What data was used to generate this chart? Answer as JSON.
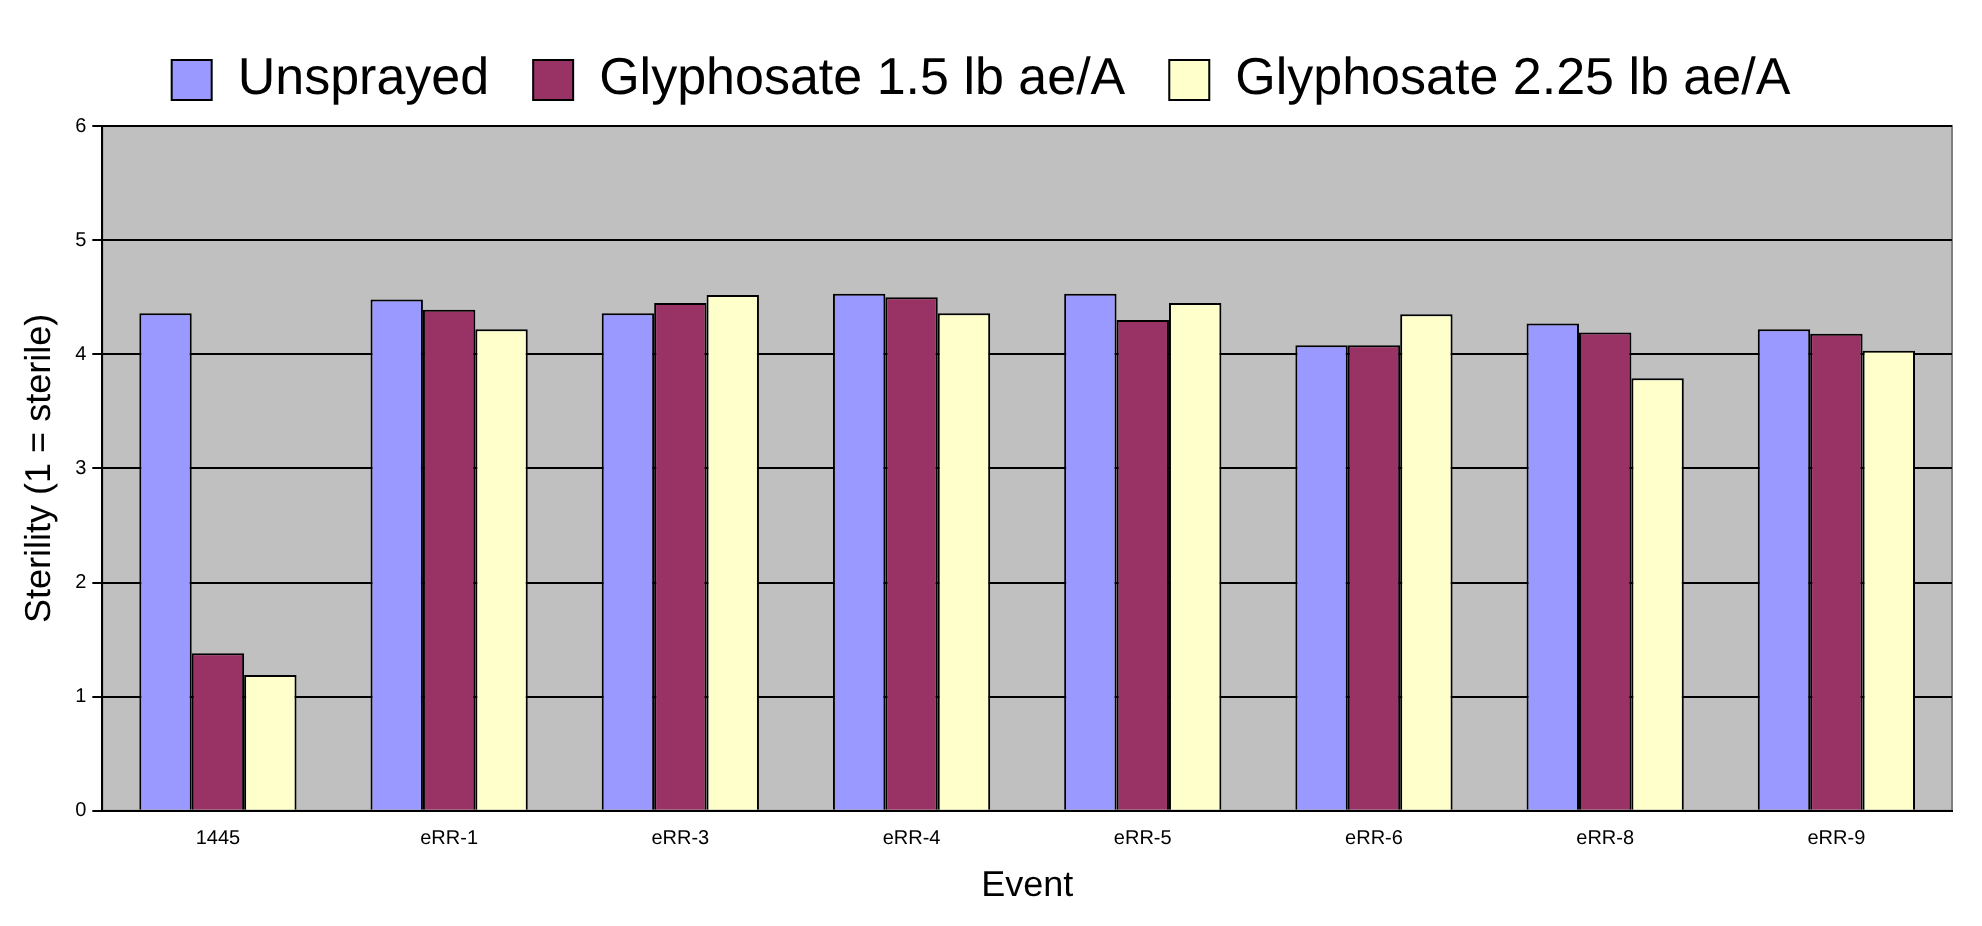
{
  "chart_data": {
    "type": "bar",
    "xlabel": "Event",
    "ylabel": "Sterility (1 = sterile)",
    "categories": [
      "1445",
      "eRR-1",
      "eRR-3",
      "eRR-4",
      "eRR-5",
      "eRR-6",
      "eRR-8",
      "eRR-9"
    ],
    "series": [
      {
        "name": "Unsprayed",
        "color": "#9999ff",
        "values": [
          4.36,
          4.48,
          4.36,
          4.53,
          4.53,
          4.08,
          4.27,
          4.22
        ]
      },
      {
        "name": "Glyphosate 1.5 lb ae/A",
        "color": "#993366",
        "values": [
          1.38,
          4.39,
          4.45,
          4.5,
          4.3,
          4.08,
          4.19,
          4.18
        ]
      },
      {
        "name": "Glyphosate 2.25 lb ae/A",
        "color": "#ffffcc",
        "values": [
          1.19,
          4.22,
          4.52,
          4.36,
          4.45,
          4.35,
          3.79,
          4.03
        ]
      }
    ],
    "ylim": [
      0,
      6
    ],
    "yticks": [
      0,
      1,
      2,
      3,
      4,
      5,
      6
    ],
    "grid": "y",
    "legend": "top"
  }
}
